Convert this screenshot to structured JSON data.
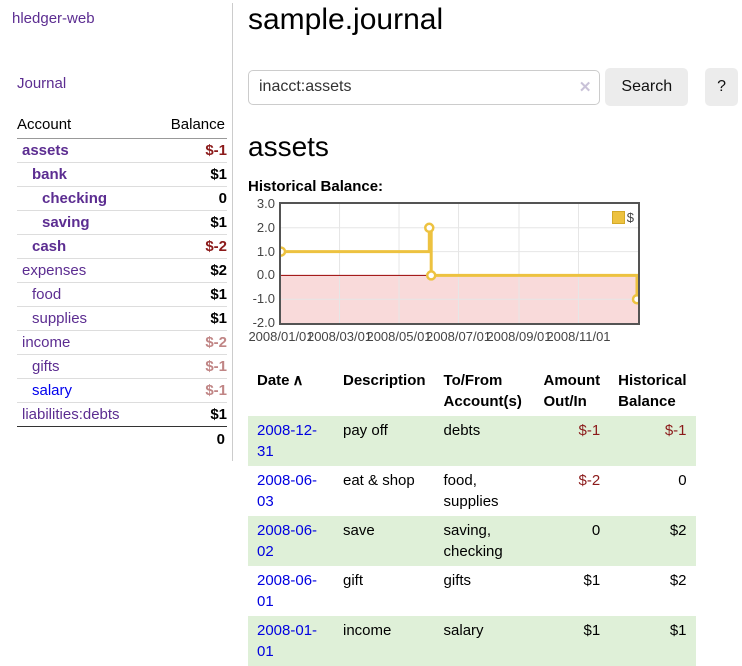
{
  "sidebar": {
    "app_title": "hledger-web",
    "nav_journal": "Journal",
    "accounts_header": {
      "account": "Account",
      "balance": "Balance"
    },
    "accounts": [
      {
        "name": "assets",
        "balance": "$-1",
        "name_class": "d0 strong",
        "balance_class": "neg"
      },
      {
        "name": "bank",
        "balance": "$1",
        "name_class": "d1 strong",
        "balance_class": ""
      },
      {
        "name": "checking",
        "balance": "0",
        "name_class": "d2 strong",
        "balance_class": ""
      },
      {
        "name": "saving",
        "balance": "$1",
        "name_class": "d2 strong",
        "balance_class": ""
      },
      {
        "name": "cash",
        "balance": "$-2",
        "name_class": "d1 strong",
        "balance_class": "neg"
      },
      {
        "name": "expenses",
        "balance": "$2",
        "name_class": "d0",
        "balance_class": ""
      },
      {
        "name": "food",
        "balance": "$1",
        "name_class": "d1",
        "balance_class": ""
      },
      {
        "name": "supplies",
        "balance": "$1",
        "name_class": "d1",
        "balance_class": ""
      },
      {
        "name": "income",
        "balance": "$-2",
        "name_class": "d0",
        "balance_class": "negsoft"
      },
      {
        "name": "gifts",
        "balance": "$-1",
        "name_class": "d1",
        "balance_class": "negsoft"
      },
      {
        "name": "salary",
        "balance": "$-1",
        "name_class": "d1 blue",
        "balance_class": "negsoft"
      },
      {
        "name": "liabilities:debts",
        "balance": "$1",
        "name_class": "d0",
        "balance_class": ""
      }
    ],
    "total": "0"
  },
  "header": {
    "title": "sample.journal"
  },
  "search": {
    "query": "inacct:assets",
    "clear_icon": "✕",
    "search_label": "Search",
    "help_label": "?"
  },
  "main": {
    "account_heading": "assets",
    "chart_title": "Historical Balance:"
  },
  "chart_data": {
    "type": "line",
    "steps": true,
    "title": "Historical Balance",
    "series": [
      {
        "name": "$",
        "color": "#edc240",
        "points": [
          [
            "2008-01-01",
            1
          ],
          [
            "2008-06-01",
            2
          ],
          [
            "2008-06-03",
            0
          ],
          [
            "2008-12-31",
            -1
          ]
        ]
      }
    ],
    "xlim": [
      "2008-01-01",
      "2009-01-01"
    ],
    "ylim": [
      -2,
      3
    ],
    "yticks": [
      "3.0",
      "2.0",
      "1.0",
      "0.0",
      "-1.0",
      "-2.0"
    ],
    "xticks": [
      "2008/01/01",
      "2008/03/01",
      "2008/05/01",
      "2008/07/01",
      "2008/09/01",
      "2008/11/01"
    ],
    "legend_position": "top-right",
    "grid": true,
    "gridline_color": "#e6e6e6",
    "negative_region_fill": "#f9dada",
    "zero_line_color": "#990000"
  },
  "register": {
    "headers": {
      "date": "Date",
      "sort_indicator": "∧",
      "description": "Description",
      "accounts": "To/From Account(s)",
      "amount": "Amount Out/In",
      "balance": "Historical Balance"
    },
    "rows": [
      {
        "date": "2008-12-31",
        "description": "pay off",
        "accounts": "debts",
        "amount": "$-1",
        "balance": "$-1",
        "row_class": "alt",
        "amount_class": "neg",
        "balance_class": "neg"
      },
      {
        "date": "2008-06-03",
        "description": "eat & shop",
        "accounts": "food, supplies",
        "amount": "$-2",
        "balance": "0",
        "row_class": "",
        "amount_class": "neg",
        "balance_class": ""
      },
      {
        "date": "2008-06-02",
        "description": "save",
        "accounts": "saving, checking",
        "amount": "0",
        "balance": "$2",
        "row_class": "alt",
        "amount_class": "",
        "balance_class": ""
      },
      {
        "date": "2008-06-01",
        "description": "gift",
        "accounts": "gifts",
        "amount": "$1",
        "balance": "$2",
        "row_class": "",
        "amount_class": "",
        "balance_class": ""
      },
      {
        "date": "2008-01-01",
        "description": "income",
        "accounts": "salary",
        "amount": "$1",
        "balance": "$1",
        "row_class": "alt",
        "amount_class": "",
        "balance_class": ""
      }
    ]
  }
}
